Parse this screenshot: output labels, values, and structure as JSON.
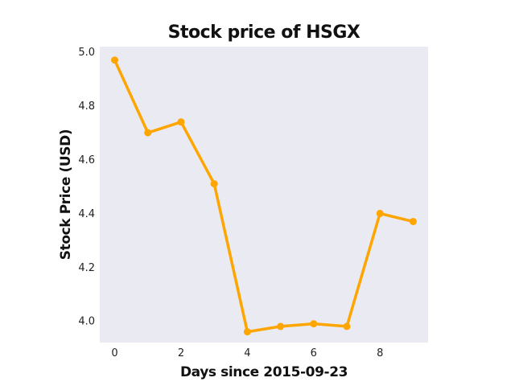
{
  "chart_data": {
    "type": "line",
    "title": "Stock price of HSGX",
    "xlabel": "Days since 2015-09-23",
    "ylabel": "Stock Price (USD)",
    "x": [
      0,
      1,
      2,
      3,
      4,
      5,
      6,
      7,
      8,
      9
    ],
    "series": [
      {
        "values": [
          4.97,
          4.7,
          4.74,
          4.51,
          3.96,
          3.98,
          3.99,
          3.98,
          4.4,
          4.37
        ]
      }
    ],
    "xlim": [
      -0.45,
      9.45
    ],
    "ylim": [
      3.92,
      5.02
    ],
    "xticks": [
      0,
      2,
      4,
      6,
      8
    ],
    "xtick_labels": [
      "0",
      "2",
      "4",
      "6",
      "8"
    ],
    "yticks": [
      4.0,
      4.2,
      4.4,
      4.6,
      4.8,
      5.0
    ],
    "ytick_labels": [
      "4.0",
      "4.2",
      "4.4",
      "4.6",
      "4.8",
      "5.0"
    ],
    "grid": false,
    "colors": {
      "line": "#FFA500",
      "plot_background": "#EAEAF2"
    }
  }
}
